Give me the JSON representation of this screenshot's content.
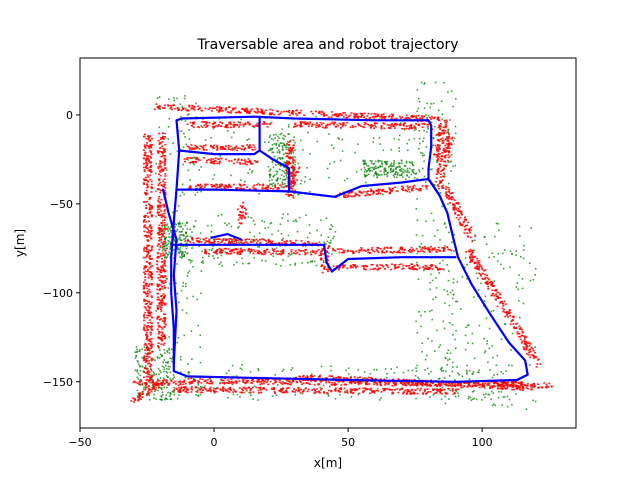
{
  "chart_data": {
    "type": "scatter",
    "title": "Traversable area and robot trajectory",
    "xlabel": "x[m]",
    "ylabel": "y[m]",
    "xlim": [
      -50,
      135
    ],
    "ylim": [
      -176,
      32
    ],
    "x_ticks": [
      -50,
      0,
      50,
      100
    ],
    "y_ticks": [
      0,
      -50,
      -100,
      -150
    ],
    "x_tick_labels": [
      "−50",
      "0",
      "50",
      "100"
    ],
    "y_tick_labels": [
      "0",
      "−50",
      "−100",
      "−150"
    ],
    "grid": false,
    "legend": "none",
    "colors": {
      "obstacle": "#ff0000",
      "traversable": "#008000",
      "trajectory": "#0000ff"
    },
    "series": [
      {
        "role": "trajectory",
        "color": "#0000ff",
        "paths": [
          [
            [
              -14,
              -3
            ],
            [
              -12,
              -2
            ],
            [
              15,
              -1
            ],
            [
              30,
              -2
            ],
            [
              60,
              -3
            ],
            [
              80,
              -3
            ],
            [
              81,
              -6
            ],
            [
              81,
              -18
            ],
            [
              80,
              -30
            ],
            [
              80,
              -36
            ],
            [
              84,
              -45
            ],
            [
              87,
              -55
            ],
            [
              89,
              -68
            ],
            [
              91,
              -80
            ],
            [
              96,
              -95
            ],
            [
              103,
              -112
            ],
            [
              110,
              -128
            ],
            [
              116,
              -138
            ],
            [
              117,
              -146
            ],
            [
              113,
              -149
            ],
            [
              90,
              -150
            ],
            [
              50,
              -149
            ],
            [
              20,
              -148
            ],
            [
              -10,
              -147
            ],
            [
              -15,
              -144
            ],
            [
              -15,
              -120
            ],
            [
              -16,
              -100
            ],
            [
              -16,
              -80
            ],
            [
              -15,
              -60
            ],
            [
              -14,
              -42
            ],
            [
              -13,
              -20
            ],
            [
              -14,
              -3
            ]
          ],
          [
            [
              -13,
              -20
            ],
            [
              0,
              -22
            ],
            [
              15,
              -22
            ],
            [
              17,
              -20
            ]
          ],
          [
            [
              17,
              -1
            ],
            [
              17,
              -20
            ],
            [
              22,
              -25
            ],
            [
              28,
              -30
            ],
            [
              28,
              -43
            ]
          ],
          [
            [
              -14,
              -42
            ],
            [
              0,
              -42
            ],
            [
              28,
              -43
            ],
            [
              45,
              -46
            ],
            [
              55,
              -40
            ],
            [
              70,
              -38
            ],
            [
              80,
              -36
            ],
            [
              84,
              -45
            ]
          ],
          [
            [
              -16,
              -73
            ],
            [
              0,
              -73
            ],
            [
              30,
              -73
            ],
            [
              41,
              -73
            ],
            [
              42,
              -83
            ],
            [
              44,
              -88
            ]
          ],
          [
            [
              44,
              -88
            ],
            [
              50,
              -81
            ],
            [
              70,
              -80
            ],
            [
              90,
              -80
            ]
          ],
          [
            [
              -1,
              -69
            ],
            [
              5,
              -67
            ],
            [
              10,
              -70
            ]
          ],
          [
            [
              -19,
              -42
            ],
            [
              -17,
              -55
            ],
            [
              -14,
              -70
            ],
            [
              -15,
              -90
            ],
            [
              -14,
              -110
            ],
            [
              -15,
              -140
            ]
          ]
        ]
      },
      {
        "role": "obstacle",
        "color": "#ff0000",
        "segments": [
          [
            [
              -21,
              5
            ],
            [
              83,
              -2
            ]
          ],
          [
            [
              -25,
              -10
            ],
            [
              -25,
              -155
            ]
          ],
          [
            [
              -20,
              -10
            ],
            [
              -20,
              -130
            ]
          ],
          [
            [
              -10,
              -149
            ],
            [
              113,
              -151
            ]
          ],
          [
            [
              -15,
              -154
            ],
            [
              90,
              -155
            ]
          ],
          [
            [
              30,
              -147
            ],
            [
              120,
              -153
            ]
          ],
          [
            [
              85,
              -2
            ],
            [
              83,
              -25
            ]
          ],
          [
            [
              88,
              -10
            ],
            [
              83,
              -40
            ]
          ],
          [
            [
              86,
              -40
            ],
            [
              96,
              -70
            ]
          ],
          [
            [
              94,
              -75
            ],
            [
              113,
              -120
            ]
          ],
          [
            [
              113,
              -120
            ],
            [
              120,
              -140
            ]
          ],
          [
            [
              -20,
              -150
            ],
            [
              -30,
              -160
            ]
          ],
          [
            [
              -10,
              -5
            ],
            [
              20,
              -5
            ]
          ],
          [
            [
              -10,
              -18
            ],
            [
              15,
              -18
            ]
          ],
          [
            [
              -10,
              -25
            ],
            [
              15,
              -26
            ]
          ],
          [
            [
              -10,
              -40
            ],
            [
              25,
              -40
            ]
          ],
          [
            [
              30,
              -5
            ],
            [
              80,
              -6
            ]
          ],
          [
            [
              28,
              -15
            ],
            [
              28,
              -40
            ]
          ],
          [
            [
              30,
              -30
            ],
            [
              28,
              -46
            ]
          ],
          [
            [
              45,
              -45
            ],
            [
              80,
              -40
            ]
          ],
          [
            [
              -10,
              -70
            ],
            [
              40,
              -72
            ]
          ],
          [
            [
              -5,
              -76
            ],
            [
              40,
              -77
            ]
          ],
          [
            [
              41,
              -72
            ],
            [
              41,
              -87
            ]
          ],
          [
            [
              45,
              -76
            ],
            [
              88,
              -75
            ]
          ],
          [
            [
              45,
              -85
            ],
            [
              85,
              -85
            ]
          ],
          [
            [
              100,
              -150
            ],
            [
              125,
              -152
            ]
          ],
          [
            [
              10,
              -50
            ],
            [
              10,
              -60
            ]
          ],
          [
            [
              -30,
              -150
            ],
            [
              -10,
              -150
            ]
          ]
        ]
      },
      {
        "role": "traversable",
        "color": "#008000",
        "regions": [
          [
            -22,
            12,
            -5,
            -160
          ],
          [
            -15,
            0,
            90,
            -45
          ],
          [
            75,
            20,
            90,
            -150
          ],
          [
            85,
            -60,
            120,
            -165
          ],
          [
            -30,
            -130,
            -15,
            -160
          ],
          [
            -10,
            -140,
            110,
            -160
          ],
          [
            -10,
            -55,
            45,
            -85
          ],
          [
            55,
            -25,
            75,
            -35
          ],
          [
            20,
            -10,
            30,
            -40
          ],
          [
            -20,
            -60,
            -10,
            -80
          ]
        ]
      }
    ]
  }
}
